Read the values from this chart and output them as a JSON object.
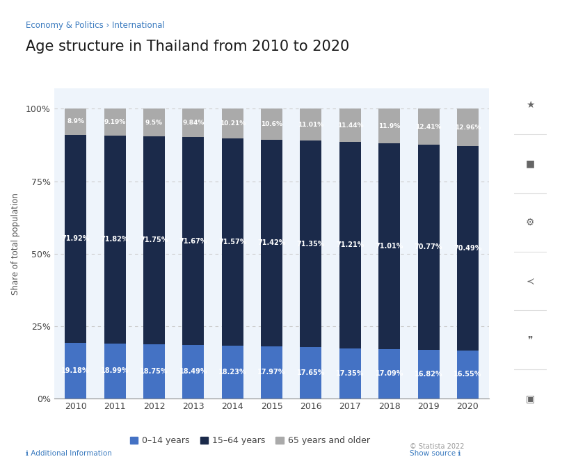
{
  "years": [
    "2010",
    "2011",
    "2012",
    "2013",
    "2014",
    "2015",
    "2016",
    "2017",
    "2018",
    "2019",
    "2020"
  ],
  "young": [
    19.18,
    18.99,
    18.75,
    18.49,
    18.23,
    17.97,
    17.65,
    17.35,
    17.09,
    16.82,
    16.55
  ],
  "working": [
    71.92,
    71.82,
    71.75,
    71.67,
    71.57,
    71.42,
    71.35,
    71.21,
    71.01,
    70.77,
    70.49
  ],
  "old": [
    8.9,
    9.19,
    9.5,
    9.84,
    10.21,
    10.6,
    11.01,
    11.44,
    11.9,
    12.41,
    12.96
  ],
  "young_labels": [
    "19.18%",
    "18.99%",
    "18.75%",
    "18.49%",
    "18.23%",
    "17.97%",
    "17.65%",
    "17.35%",
    "17.09%",
    "16.82%",
    "16.55%"
  ],
  "working_labels": [
    "71.92%",
    "71.82%",
    "71.75%",
    "71.67%",
    "71.57%",
    "71.42%",
    "71.35%",
    "71.21%",
    "71.01%",
    "70.77%",
    "70.49%"
  ],
  "old_labels": [
    "8.9%",
    "9.19%",
    "9.5%",
    "9.84%",
    "10.21%",
    "10.6%",
    "11.01%",
    "11.44%",
    "11.9%",
    "12.41%",
    "12.96%"
  ],
  "color_young": "#4472C4",
  "color_working": "#1b2a4a",
  "color_old": "#aaaaaa",
  "title": "Age structure in Thailand from 2010 to 2020",
  "breadcrumb": "Economy & Politics › International",
  "ylabel": "Share of total population",
  "yticks": [
    0,
    25,
    50,
    75,
    100
  ],
  "ytick_labels": [
    "0%",
    "25%",
    "50%",
    "75%",
    "100%"
  ],
  "legend_labels": [
    "0–14 years",
    "15–64 years",
    "65 years and older"
  ],
  "background_color": "#ffffff",
  "plot_bg_color": "#eef4fb",
  "bar_width": 0.55
}
